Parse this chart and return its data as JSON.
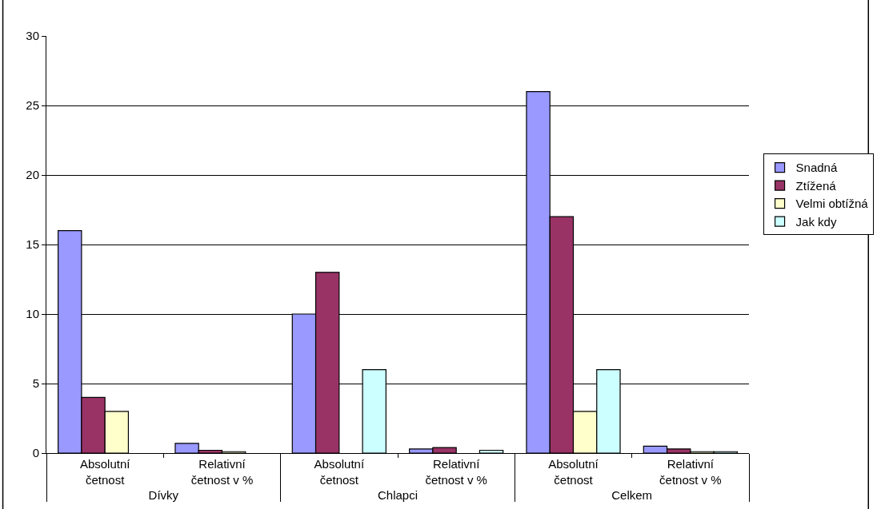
{
  "chart_data": {
    "type": "bar",
    "categories": [
      "Absolutní četnost",
      "Relativní četnost v %",
      "Absolutní četnost",
      "Relativní četnost v %",
      "Absolutní četnost",
      "Relativní četnost v %"
    ],
    "annotations": [
      "Dívky",
      "Chlapci",
      "Celkem"
    ],
    "series": [
      {
        "name": "Snadná",
        "color": "#9999ff",
        "values": [
          16,
          0.7,
          10,
          0.3,
          26,
          0.5
        ]
      },
      {
        "name": "Ztížená",
        "color": "#993366",
        "values": [
          4,
          0.2,
          13,
          0.4,
          17,
          0.3
        ]
      },
      {
        "name": "Velmi obtížná",
        "color": "#ffffcc",
        "values": [
          3,
          0.1,
          null,
          null,
          3,
          0.1
        ]
      },
      {
        "name": "Jak kdy",
        "color": "#ccffff",
        "values": [
          null,
          null,
          6,
          0.2,
          6,
          0.1
        ]
      }
    ],
    "ylim": [
      0,
      30
    ],
    "yticks": [
      0,
      5,
      10,
      15,
      20,
      25,
      30
    ],
    "grid": "y",
    "legend": "right"
  }
}
